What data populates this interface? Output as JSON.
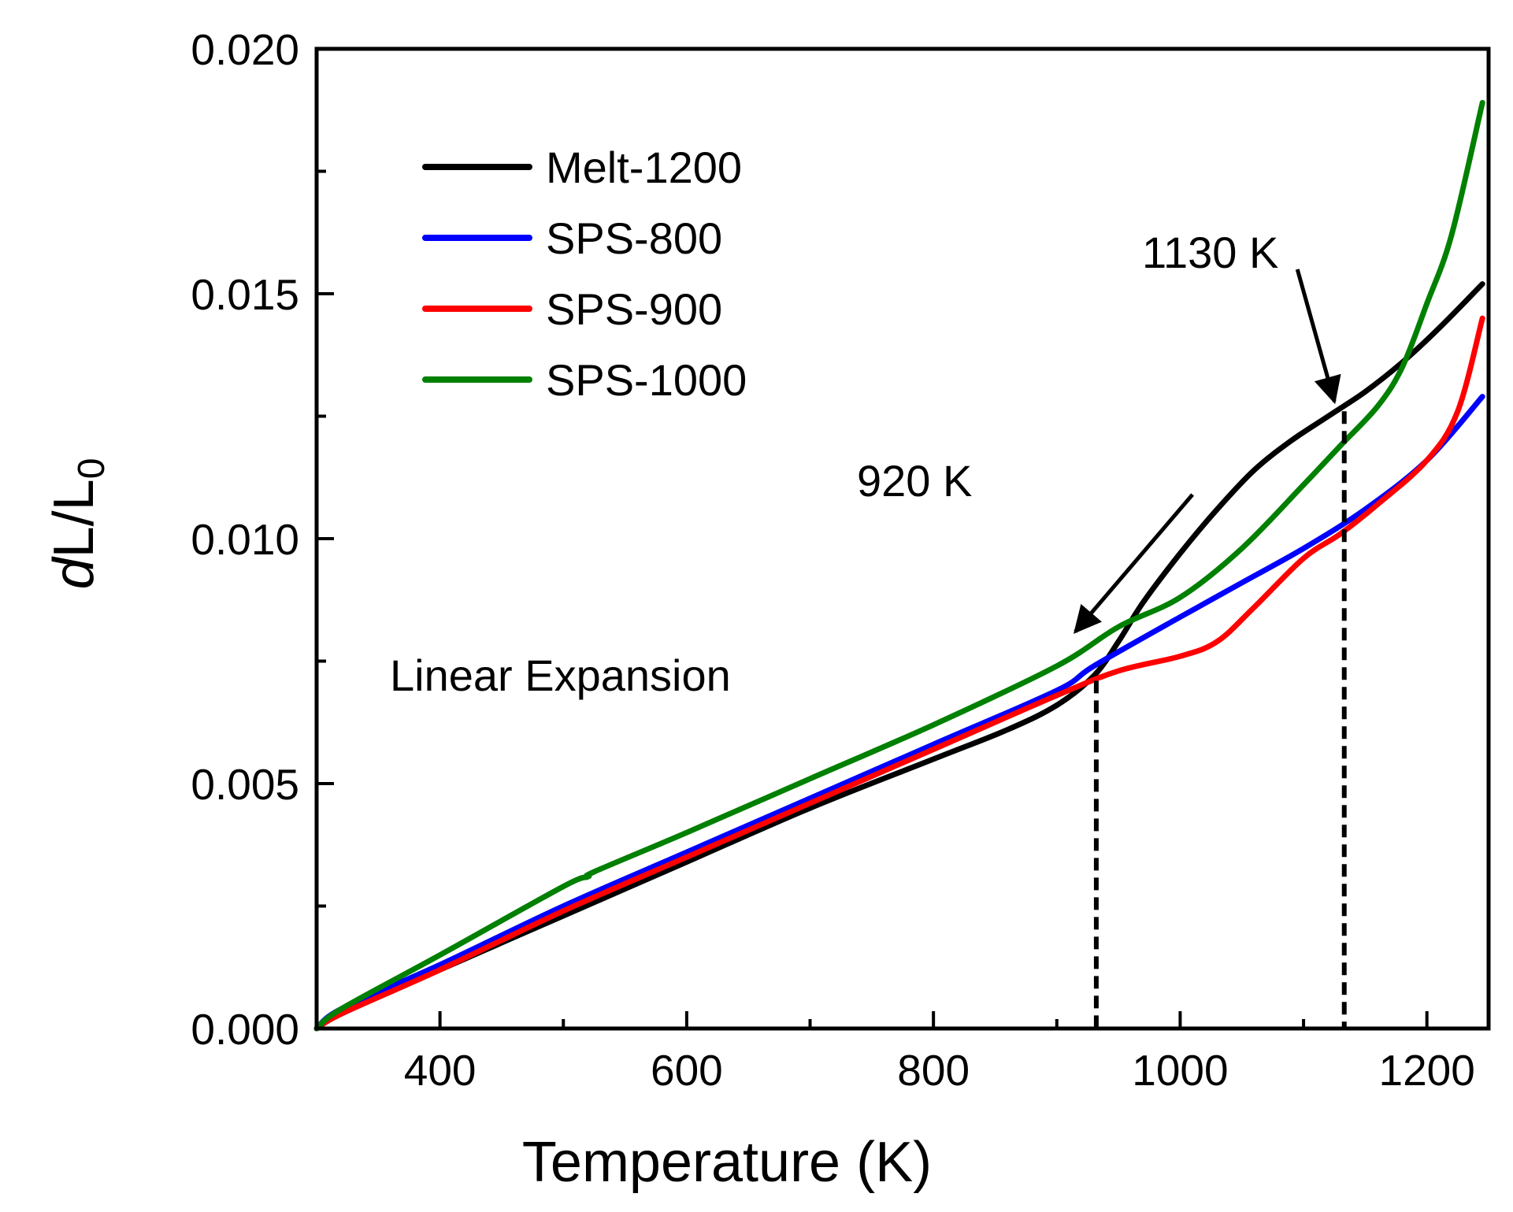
{
  "chart_data": {
    "type": "line",
    "xlabel": "Temperature (K)",
    "ylabel_main": "dL/L",
    "ylabel_sub": "0",
    "xlim": [
      300,
      1250
    ],
    "ylim": [
      0,
      0.02
    ],
    "xticks": [
      400,
      600,
      800,
      1000,
      1200
    ],
    "xtick_labels": [
      "400",
      "600",
      "800",
      "1000",
      "1200"
    ],
    "yticks": [
      0,
      0.005,
      0.01,
      0.015,
      0.02
    ],
    "ytick_labels": [
      "0.000",
      "0.005",
      "0.010",
      "0.015",
      "0.020"
    ],
    "legend_position": "top-left",
    "grid": false,
    "series": [
      {
        "name": "Melt-1200",
        "color": "#000000",
        "x": [
          300,
          320,
          400,
          500,
          600,
          700,
          800,
          860,
          900,
          930,
          950,
          970,
          1000,
          1030,
          1060,
          1090,
          1120,
          1150,
          1180,
          1210,
          1245
        ],
        "y": [
          0.0,
          0.0003,
          0.0012,
          0.0023,
          0.0034,
          0.0045,
          0.0055,
          0.0061,
          0.0066,
          0.0072,
          0.0079,
          0.0087,
          0.0097,
          0.0106,
          0.0114,
          0.012,
          0.0125,
          0.013,
          0.0136,
          0.0143,
          0.0152
        ]
      },
      {
        "name": "SPS-800",
        "color": "#0000ff",
        "x": [
          300,
          320,
          400,
          500,
          600,
          700,
          800,
          900,
          930,
          1000,
          1050,
          1100,
          1150,
          1200,
          1245
        ],
        "y": [
          0.0,
          0.0004,
          0.0013,
          0.0025,
          0.0036,
          0.0047,
          0.0058,
          0.0069,
          0.0074,
          0.0084,
          0.0091,
          0.0098,
          0.0106,
          0.0116,
          0.0129
        ]
      },
      {
        "name": "SPS-900",
        "color": "#ff0000",
        "x": [
          300,
          320,
          400,
          500,
          600,
          700,
          800,
          900,
          950,
          1000,
          1030,
          1060,
          1100,
          1130,
          1160,
          1200,
          1225,
          1245
        ],
        "y": [
          0.0,
          0.0003,
          0.0012,
          0.0024,
          0.0035,
          0.0046,
          0.0057,
          0.0068,
          0.0073,
          0.0076,
          0.0079,
          0.0086,
          0.0096,
          0.0101,
          0.0107,
          0.0116,
          0.0126,
          0.0145
        ]
      },
      {
        "name": "SPS-1000",
        "color": "#008000",
        "x": [
          300,
          320,
          400,
          500,
          520,
          525,
          600,
          700,
          800,
          900,
          950,
          1000,
          1050,
          1100,
          1130,
          1160,
          1180,
          1200,
          1220,
          1245
        ],
        "y": [
          0.0,
          0.0004,
          0.0015,
          0.0029,
          0.0031,
          0.0032,
          0.004,
          0.0051,
          0.0062,
          0.0074,
          0.0082,
          0.0088,
          0.0098,
          0.0111,
          0.0119,
          0.0127,
          0.0135,
          0.0148,
          0.0162,
          0.0189
        ]
      }
    ],
    "annotations": [
      {
        "text": "Linear Expansion"
      },
      {
        "text": "920 K",
        "vline_x": 932,
        "vline_y_top": 0.0071,
        "arrow_from": [
          1010,
          0.0109
        ],
        "arrow_to": [
          915,
          0.0081
        ]
      },
      {
        "text": "1130 K",
        "vline_x": 1133,
        "vline_y_top": 0.0126,
        "arrow_from": [
          1095,
          0.0155
        ],
        "arrow_to": [
          1125,
          0.0128
        ]
      }
    ]
  }
}
